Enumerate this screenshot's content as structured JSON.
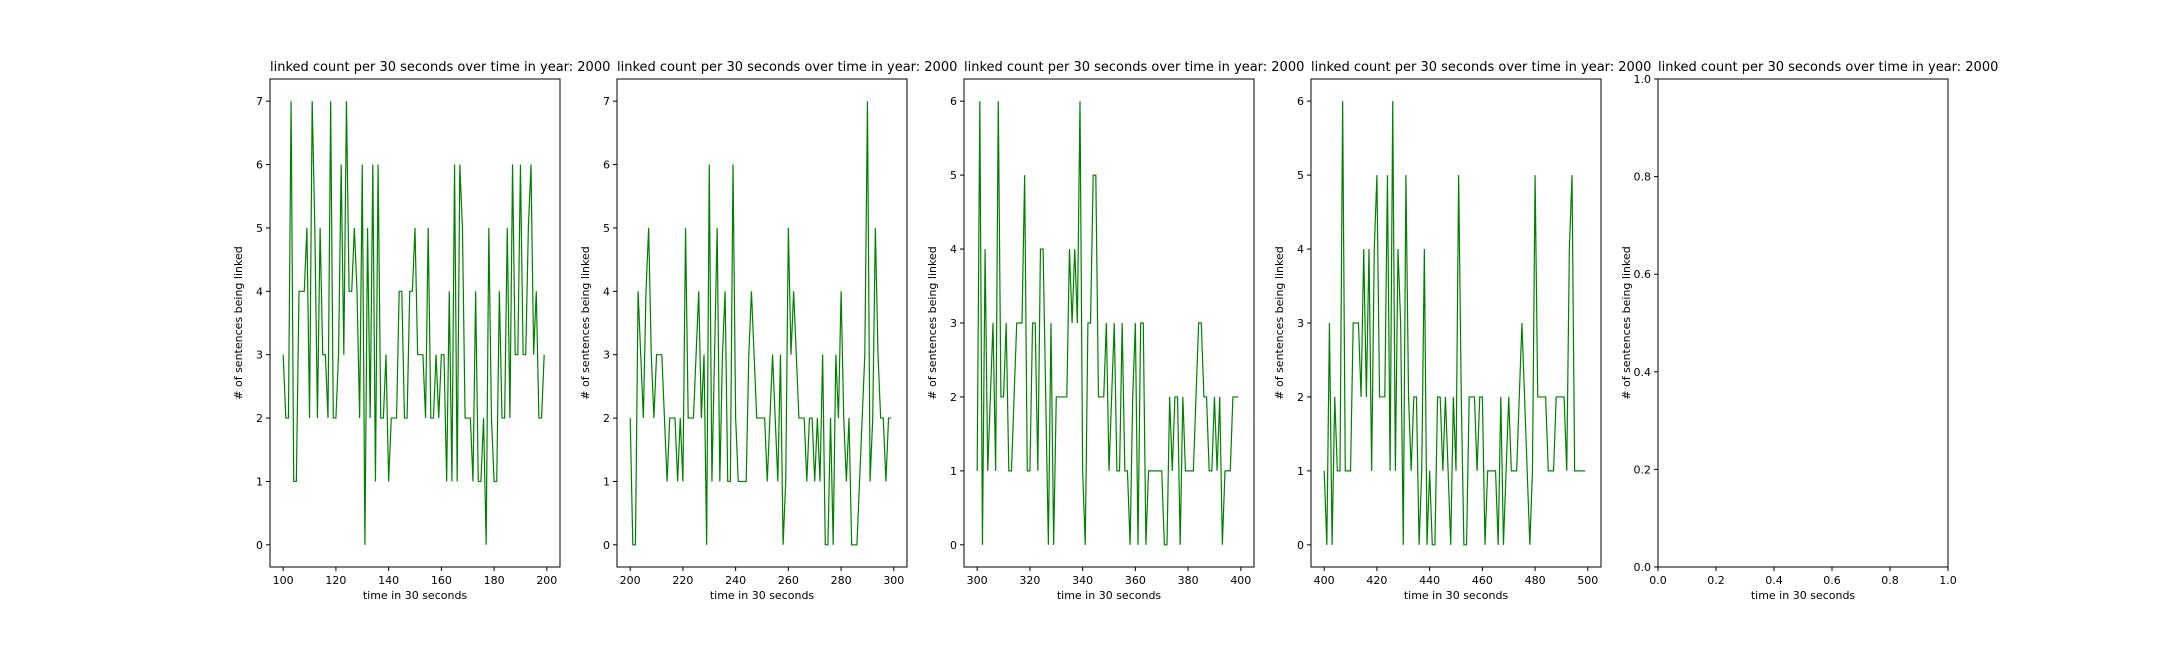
{
  "chart_data": [
    {
      "type": "line",
      "title": "linked count per 30 seconds over time in year: 2000",
      "xlabel": "time in 30 seconds",
      "ylabel": "# of sentences being linked",
      "xlim": [
        95,
        205
      ],
      "ylim": [
        -0.35,
        7.35
      ],
      "xticks": [
        100,
        120,
        140,
        160,
        180,
        200
      ],
      "yticks": [
        0,
        1,
        2,
        3,
        4,
        5,
        6,
        7
      ],
      "color": "#008000",
      "x": [
        100,
        101,
        102,
        103,
        104,
        105,
        106,
        107,
        108,
        109,
        110,
        111,
        112,
        113,
        114,
        115,
        116,
        117,
        118,
        119,
        120,
        121,
        122,
        123,
        124,
        125,
        126,
        127,
        128,
        129,
        130,
        131,
        132,
        133,
        134,
        135,
        136,
        137,
        138,
        139,
        140,
        141,
        142,
        143,
        144,
        145,
        146,
        147,
        148,
        149,
        150,
        151,
        152,
        153,
        154,
        155,
        156,
        157,
        158,
        159,
        160,
        161,
        162,
        163,
        164,
        165,
        166,
        167,
        168,
        169,
        170,
        171,
        172,
        173,
        174,
        175,
        176,
        177,
        178,
        179,
        180,
        181,
        182,
        183,
        184,
        185,
        186,
        187,
        188,
        189,
        190,
        191,
        192,
        193,
        194,
        195,
        196,
        197,
        198,
        199
      ],
      "y": [
        3,
        2,
        2,
        7,
        1,
        1,
        4,
        4,
        4,
        5,
        2,
        7,
        5,
        2,
        5,
        3,
        3,
        2,
        7,
        2,
        2,
        3,
        6,
        3,
        7,
        4,
        4,
        5,
        4,
        2,
        6,
        0,
        5,
        2,
        6,
        1,
        6,
        2,
        2,
        3,
        1,
        2,
        2,
        2,
        4,
        4,
        2,
        2,
        4,
        4,
        5,
        3,
        3,
        3,
        2,
        5,
        2,
        2,
        3,
        2,
        3,
        3,
        1,
        4,
        1,
        6,
        1,
        6,
        5,
        2,
        2,
        2,
        1,
        4,
        1,
        1,
        2,
        0,
        5,
        2,
        1,
        1,
        4,
        2,
        2,
        5,
        2,
        6,
        3,
        3,
        6,
        3,
        3,
        5,
        6,
        3,
        4,
        2,
        2,
        3
      ]
    },
    {
      "type": "line",
      "title": "linked count per 30 seconds over time in year: 2000",
      "xlabel": "time in 30 seconds",
      "ylabel": "# of sentences being linked",
      "xlim": [
        195,
        305
      ],
      "ylim": [
        -0.35,
        7.35
      ],
      "xticks": [
        200,
        220,
        240,
        260,
        280,
        300
      ],
      "yticks": [
        0,
        1,
        2,
        3,
        4,
        5,
        6,
        7
      ],
      "color": "#008000",
      "x": [
        200,
        201,
        202,
        203,
        204,
        205,
        206,
        207,
        208,
        209,
        210,
        211,
        212,
        213,
        214,
        215,
        216,
        217,
        218,
        219,
        220,
        221,
        222,
        223,
        224,
        225,
        226,
        227,
        228,
        229,
        230,
        231,
        232,
        233,
        234,
        235,
        236,
        237,
        238,
        239,
        240,
        241,
        242,
        243,
        244,
        245,
        246,
        247,
        248,
        249,
        250,
        251,
        252,
        253,
        254,
        255,
        256,
        257,
        258,
        259,
        260,
        261,
        262,
        263,
        264,
        265,
        266,
        267,
        268,
        269,
        270,
        271,
        272,
        273,
        274,
        275,
        276,
        277,
        278,
        279,
        280,
        281,
        282,
        283,
        284,
        285,
        286,
        287,
        288,
        289,
        290,
        291,
        292,
        293,
        294,
        295,
        296,
        297,
        298,
        299
      ],
      "y": [
        2,
        0,
        0,
        4,
        3,
        2,
        4,
        5,
        3,
        2,
        3,
        3,
        3,
        2,
        1,
        2,
        2,
        2,
        1,
        2,
        1,
        5,
        2,
        2,
        2,
        3,
        4,
        2,
        3,
        0,
        6,
        1,
        3,
        5,
        1,
        3,
        4,
        1,
        1,
        6,
        2,
        1,
        1,
        1,
        1,
        3,
        4,
        3,
        2,
        2,
        2,
        2,
        1,
        2,
        3,
        2,
        1,
        3,
        0,
        1,
        5,
        3,
        4,
        3,
        2,
        2,
        2,
        1,
        2,
        2,
        1,
        2,
        1,
        3,
        0,
        0,
        2,
        0,
        3,
        2,
        4,
        2,
        1,
        2,
        0,
        0,
        0,
        1,
        2,
        3,
        7,
        1,
        2,
        5,
        3,
        2,
        2,
        1,
        2,
        2
      ]
    },
    {
      "type": "line",
      "title": "linked count per 30 seconds over time in year: 2000",
      "xlabel": "time in 30 seconds",
      "ylabel": "# of sentences being linked",
      "xlim": [
        295,
        405
      ],
      "ylim": [
        -0.3,
        6.3
      ],
      "xticks": [
        300,
        320,
        340,
        360,
        380,
        400
      ],
      "yticks": [
        0,
        1,
        2,
        3,
        4,
        5,
        6
      ],
      "color": "#008000",
      "x": [
        300,
        301,
        302,
        303,
        304,
        305,
        306,
        307,
        308,
        309,
        310,
        311,
        312,
        313,
        314,
        315,
        316,
        317,
        318,
        319,
        320,
        321,
        322,
        323,
        324,
        325,
        326,
        327,
        328,
        329,
        330,
        331,
        332,
        333,
        334,
        335,
        336,
        337,
        338,
        339,
        340,
        341,
        342,
        343,
        344,
        345,
        346,
        347,
        348,
        349,
        350,
        351,
        352,
        353,
        354,
        355,
        356,
        357,
        358,
        359,
        360,
        361,
        362,
        363,
        364,
        365,
        366,
        367,
        368,
        369,
        370,
        371,
        372,
        373,
        374,
        375,
        376,
        377,
        378,
        379,
        380,
        381,
        382,
        383,
        384,
        385,
        386,
        387,
        388,
        389,
        390,
        391,
        392,
        393,
        394,
        395,
        396,
        397,
        398,
        399
      ],
      "y": [
        1,
        6,
        0,
        4,
        1,
        2,
        3,
        1,
        6,
        2,
        2,
        3,
        1,
        1,
        2,
        3,
        3,
        3,
        5,
        1,
        1,
        3,
        3,
        1,
        4,
        4,
        2,
        0,
        3,
        0,
        2,
        2,
        2,
        2,
        2,
        4,
        3,
        4,
        3,
        6,
        1,
        0,
        3,
        3,
        5,
        5,
        2,
        2,
        2,
        3,
        1,
        2,
        3,
        1,
        1,
        3,
        1,
        1,
        0,
        2,
        3,
        0,
        3,
        3,
        0,
        1,
        1,
        1,
        1,
        1,
        1,
        0,
        0,
        2,
        1,
        2,
        2,
        0,
        2,
        1,
        1,
        1,
        1,
        2,
        3,
        3,
        2,
        2,
        1,
        1,
        2,
        1,
        2,
        0,
        1,
        1,
        1,
        2,
        2,
        2
      ]
    },
    {
      "type": "line",
      "title": "linked count per 30 seconds over time in year: 2000",
      "xlabel": "time in 30 seconds",
      "ylabel": "# of sentences being linked",
      "xlim": [
        395,
        505
      ],
      "ylim": [
        -0.3,
        6.3
      ],
      "xticks": [
        400,
        420,
        440,
        460,
        480,
        500
      ],
      "yticks": [
        0,
        1,
        2,
        3,
        4,
        5,
        6
      ],
      "color": "#008000",
      "x": [
        400,
        401,
        402,
        403,
        404,
        405,
        406,
        407,
        408,
        409,
        410,
        411,
        412,
        413,
        414,
        415,
        416,
        417,
        418,
        419,
        420,
        421,
        422,
        423,
        424,
        425,
        426,
        427,
        428,
        429,
        430,
        431,
        432,
        433,
        434,
        435,
        436,
        437,
        438,
        439,
        440,
        441,
        442,
        443,
        444,
        445,
        446,
        447,
        448,
        449,
        450,
        451,
        452,
        453,
        454,
        455,
        456,
        457,
        458,
        459,
        460,
        461,
        462,
        463,
        464,
        465,
        466,
        467,
        468,
        469,
        470,
        471,
        472,
        473,
        474,
        475,
        476,
        477,
        478,
        479,
        480,
        481,
        482,
        483,
        484,
        485,
        486,
        487,
        488,
        489,
        490,
        491,
        492,
        493,
        494,
        495,
        496,
        497,
        498,
        499
      ],
      "y": [
        1,
        0,
        3,
        0,
        2,
        1,
        1,
        6,
        1,
        1,
        1,
        3,
        3,
        3,
        2,
        4,
        2,
        4,
        1,
        4,
        5,
        2,
        2,
        2,
        5,
        1,
        6,
        1,
        4,
        3,
        0,
        5,
        2,
        1,
        2,
        2,
        0,
        1,
        4,
        0,
        1,
        0,
        0,
        2,
        2,
        1,
        2,
        1,
        0,
        2,
        1,
        5,
        2,
        0,
        0,
        2,
        2,
        2,
        1,
        2,
        2,
        0,
        1,
        1,
        1,
        1,
        0,
        2,
        0,
        1,
        2,
        1,
        1,
        1,
        2,
        3,
        2,
        1,
        0,
        1,
        5,
        2,
        2,
        2,
        2,
        1,
        1,
        1,
        2,
        2,
        2,
        2,
        1,
        4,
        5,
        1,
        1,
        1,
        1,
        1
      ]
    },
    {
      "type": "line",
      "title": "linked count per 30 seconds over time in year: 2000",
      "xlabel": "time in 30 seconds",
      "ylabel": "# of sentences being linked",
      "xlim": [
        0.0,
        1.0
      ],
      "ylim": [
        0.0,
        1.0
      ],
      "xticks": [
        0.0,
        0.2,
        0.4,
        0.6,
        0.8,
        1.0
      ],
      "yticks": [
        0.0,
        0.2,
        0.4,
        0.6,
        0.8,
        1.0
      ],
      "ticklabel_decimals": 1,
      "color": "#008000",
      "x": [],
      "y": []
    }
  ]
}
